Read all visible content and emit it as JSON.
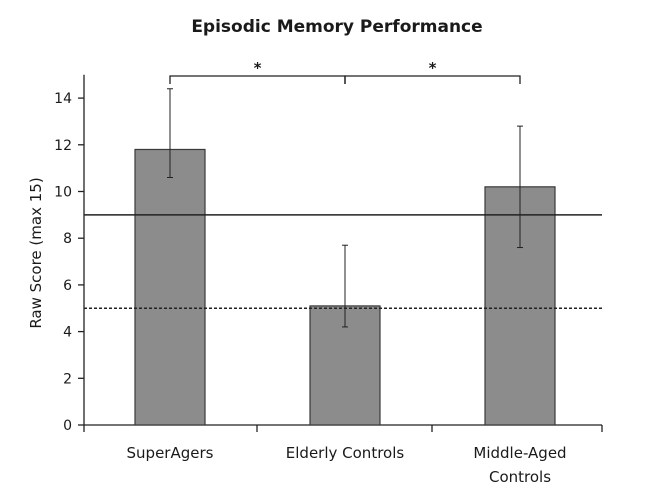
{
  "chart_data": {
    "type": "bar",
    "title": "Episodic Memory Performance",
    "xlabel": "",
    "ylabel": "Raw Score (max 15)",
    "ylim": [
      0,
      15
    ],
    "yticks": [
      0,
      2,
      4,
      6,
      8,
      10,
      12,
      14
    ],
    "grid": false,
    "categories": [
      [
        "SuperAgers"
      ],
      [
        "Elderly Controls"
      ],
      [
        "Middle-Aged",
        "Controls"
      ]
    ],
    "series": [
      {
        "values": [
          11.8,
          5.1,
          10.2
        ],
        "error_upper": [
          14.4,
          7.7,
          12.8
        ],
        "error_lower": [
          10.6,
          4.2,
          7.6
        ],
        "color": "#8c8c8c"
      }
    ],
    "reference_lines": [
      {
        "y": 9,
        "style": "solid"
      },
      {
        "y": 5,
        "style": "dashed"
      }
    ],
    "significance": [
      {
        "from": 0,
        "to": 1,
        "label": "*"
      },
      {
        "from": 1,
        "to": 2,
        "label": "*"
      }
    ]
  }
}
